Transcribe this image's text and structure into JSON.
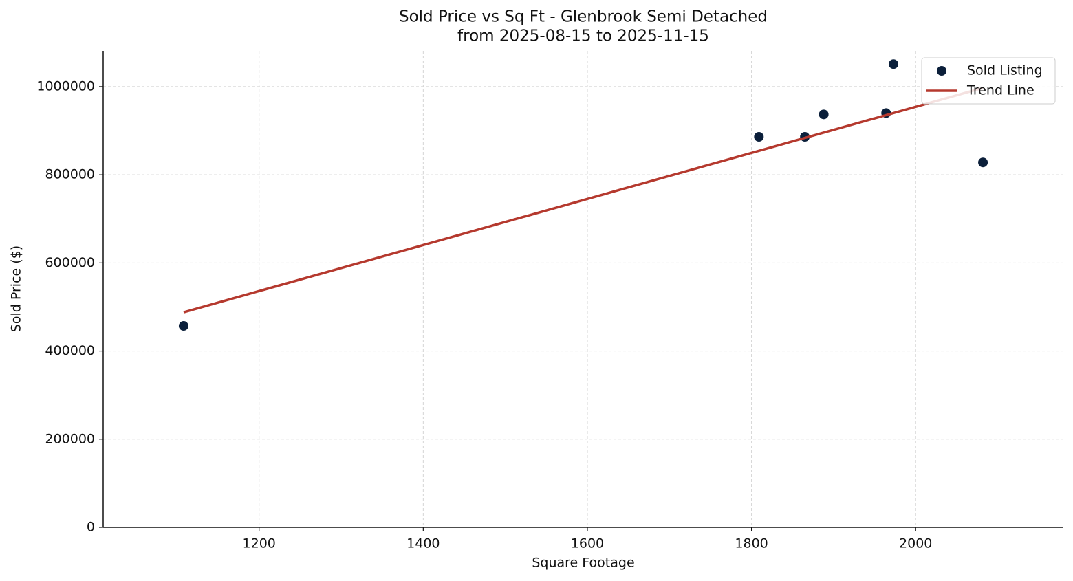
{
  "chart_data": {
    "type": "scatter",
    "title": "Sold Price vs Sq Ft - Glenbrook Semi Detached",
    "subtitle": "from 2025-08-15 to 2025-11-15",
    "x_label": "Square Footage",
    "y_label": "Sold Price ($)",
    "xlim": [
      1010,
      2180
    ],
    "ylim": [
      0,
      1081000
    ],
    "xticks": [
      1200,
      1400,
      1600,
      1800,
      2000
    ],
    "yticks": [
      0,
      200000,
      400000,
      600000,
      800000,
      1000000
    ],
    "grid": true,
    "legend": "upper right",
    "series": [
      {
        "name": "Sold Listing",
        "type": "scatter",
        "color": "#0b1f3a",
        "x": [
          1108,
          1809,
          1865,
          1888,
          1964,
          1973,
          2082
        ],
        "values": [
          457000,
          886000,
          886000,
          937000,
          940000,
          1051000,
          828000
        ]
      },
      {
        "name": "Trend Line",
        "type": "line",
        "color": "#b5392e",
        "x": [
          1108,
          2082
        ],
        "values": [
          488000,
          997000
        ]
      }
    ]
  }
}
